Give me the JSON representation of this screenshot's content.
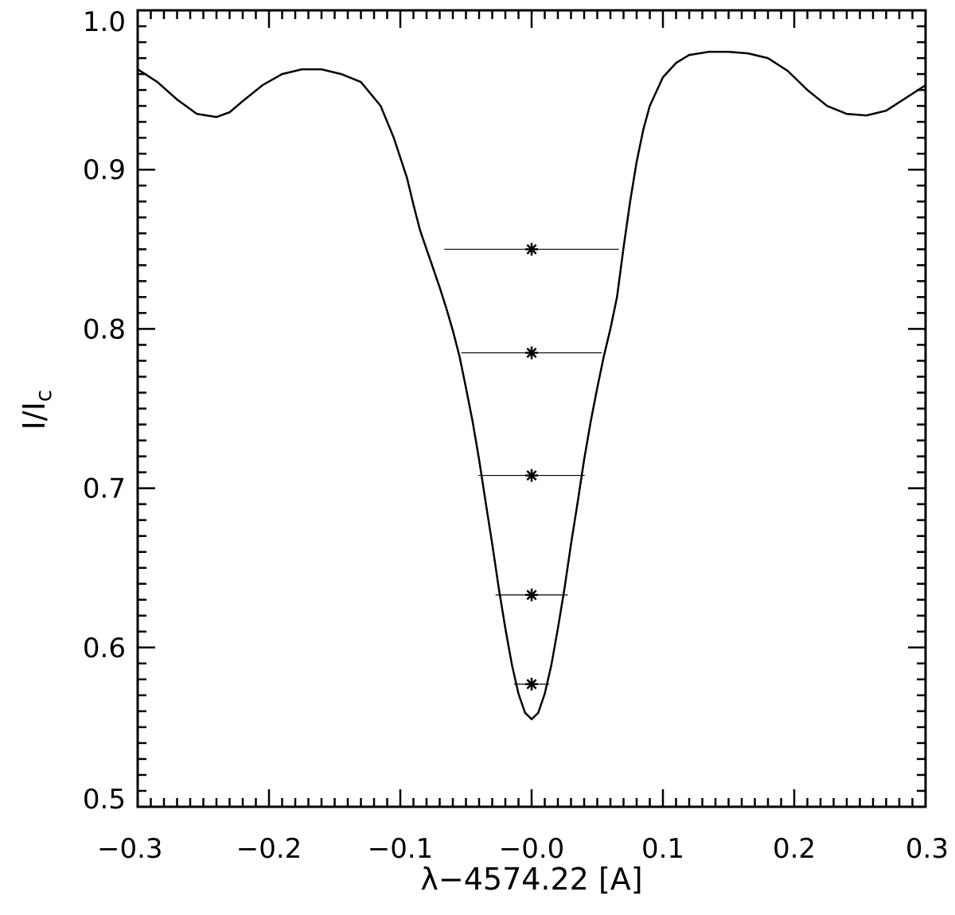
{
  "chart_data": {
    "type": "line",
    "title": "",
    "xlabel": "λ−4574.22 [A]",
    "ylabel_main": "I/I",
    "ylabel_sub": "c",
    "xlim": [
      -0.3,
      0.3
    ],
    "ylim": [
      0.5,
      1.0
    ],
    "x_ticks": [
      -0.3,
      -0.2,
      -0.1,
      0.0,
      0.1,
      0.2,
      0.3
    ],
    "x_tick_labels": [
      "−0.3",
      "−0.2",
      "−0.1",
      "−0.0",
      "0.1",
      "0.2",
      "0.3"
    ],
    "y_ticks": [
      0.5,
      0.6,
      0.7,
      0.8,
      0.9,
      1.0
    ],
    "y_tick_labels": [
      "0.5",
      "0.6",
      "0.7",
      "0.8",
      "0.9",
      "1.0"
    ],
    "grid": false,
    "series": [
      {
        "x": [
          -0.3,
          -0.285,
          -0.27,
          -0.255,
          -0.24,
          -0.23,
          -0.22,
          -0.205,
          -0.19,
          -0.175,
          -0.16,
          -0.145,
          -0.13,
          -0.115,
          -0.105,
          -0.095,
          -0.09,
          -0.085,
          -0.08,
          -0.075,
          -0.07,
          -0.065,
          -0.06,
          -0.055,
          -0.05,
          -0.045,
          -0.04,
          -0.035,
          -0.03,
          -0.025,
          -0.02,
          -0.015,
          -0.01,
          -0.005,
          0.0,
          0.005,
          0.01,
          0.015,
          0.02,
          0.025,
          0.03,
          0.035,
          0.04,
          0.045,
          0.05,
          0.055,
          0.06,
          0.065,
          0.07,
          0.075,
          0.08,
          0.085,
          0.09,
          0.1,
          0.11,
          0.12,
          0.135,
          0.15,
          0.165,
          0.18,
          0.195,
          0.21,
          0.225,
          0.24,
          0.255,
          0.27,
          0.285,
          0.3
        ],
        "y": [
          0.963,
          0.955,
          0.944,
          0.935,
          0.933,
          0.936,
          0.943,
          0.953,
          0.96,
          0.963,
          0.963,
          0.96,
          0.955,
          0.94,
          0.92,
          0.895,
          0.878,
          0.862,
          0.85,
          0.838,
          0.826,
          0.813,
          0.799,
          0.783,
          0.763,
          0.742,
          0.718,
          0.691,
          0.665,
          0.637,
          0.612,
          0.589,
          0.571,
          0.559,
          0.555,
          0.559,
          0.571,
          0.589,
          0.612,
          0.637,
          0.665,
          0.691,
          0.718,
          0.742,
          0.763,
          0.783,
          0.8,
          0.82,
          0.851,
          0.88,
          0.905,
          0.925,
          0.94,
          0.958,
          0.967,
          0.972,
          0.974,
          0.974,
          0.973,
          0.97,
          0.962,
          0.95,
          0.94,
          0.935,
          0.934,
          0.937,
          0.945,
          0.953
        ]
      }
    ],
    "bisector_lines": [
      {
        "y": 0.85,
        "x1": -0.0665,
        "x2": 0.0665
      },
      {
        "y": 0.785,
        "x1": -0.0535,
        "x2": 0.0535
      },
      {
        "y": 0.708,
        "x1": -0.0405,
        "x2": 0.0405
      },
      {
        "y": 0.633,
        "x1": -0.0275,
        "x2": 0.0275
      },
      {
        "y": 0.577,
        "x1": -0.0135,
        "x2": 0.0135
      }
    ],
    "bisector_points": [
      {
        "x": 0.0,
        "y": 0.85
      },
      {
        "x": 0.0,
        "y": 0.785
      },
      {
        "x": 0.0,
        "y": 0.708
      },
      {
        "x": 0.0,
        "y": 0.633
      },
      {
        "x": 0.0,
        "y": 0.577
      }
    ]
  }
}
